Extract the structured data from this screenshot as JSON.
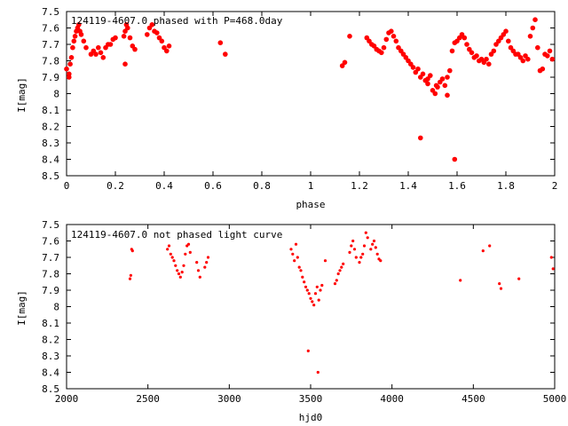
{
  "chart_data": [
    {
      "type": "scatter",
      "title": "124119-4607.0 phased with P=468.0day",
      "xlabel": "phase",
      "ylabel": "I[mag]",
      "xlim": [
        0,
        2
      ],
      "ylim": [
        7.5,
        8.5
      ],
      "y_inverted": true,
      "x_ticks": [
        "0",
        "0.2",
        "0.4",
        "0.6",
        "0.8",
        "1",
        "1.2",
        "1.4",
        "1.6",
        "1.8",
        "2"
      ],
      "y_ticks": [
        "7.5",
        "7.6",
        "7.7",
        "7.8",
        "7.9",
        "8",
        "8.1",
        "8.2",
        "8.3",
        "8.4",
        "8.5"
      ],
      "marker_color": "#ff0000",
      "marker_size": "large",
      "series": [
        {
          "x": [
            0.0,
            0.01,
            0.015,
            0.02,
            0.025,
            0.03,
            0.035,
            0.04,
            0.045,
            0.05,
            0.055,
            0.06,
            0.07,
            0.08,
            0.1,
            0.11,
            0.12,
            0.13,
            0.14,
            0.15,
            0.16,
            0.17,
            0.18,
            0.19,
            0.2,
            0.235,
            0.24,
            0.245,
            0.25,
            0.26,
            0.27,
            0.28,
            0.33,
            0.34,
            0.35,
            0.36,
            0.37,
            0.38,
            0.39,
            0.4,
            0.41,
            0.42,
            0.63,
            0.65,
            1.13,
            1.14,
            1.16,
            1.23,
            1.24,
            1.25,
            1.26,
            1.27,
            1.28,
            1.29,
            1.3,
            1.31,
            1.32,
            1.33,
            1.34,
            1.35,
            1.36,
            1.37,
            1.38,
            1.39,
            1.4,
            1.41,
            1.42,
            1.43,
            1.44,
            1.45,
            1.46,
            1.47,
            1.48,
            1.49,
            1.5,
            1.51,
            1.52,
            1.53,
            1.54,
            1.55,
            1.56,
            1.57,
            1.58,
            1.59,
            1.6,
            1.61,
            1.62,
            1.63,
            1.64,
            1.65,
            1.66,
            1.67,
            1.68,
            1.69,
            1.7,
            1.71,
            1.72,
            1.73,
            1.74,
            1.75,
            1.76,
            1.77,
            1.78,
            1.79,
            1.8,
            1.81,
            1.82,
            1.83,
            1.84,
            1.85,
            1.86,
            1.87,
            1.88,
            1.89,
            1.9,
            1.91,
            1.92,
            1.93,
            1.94,
            1.95,
            1.96,
            1.97,
            1.98,
            1.99,
            1.45,
            1.59,
            0.24,
            0.01,
            1.48,
            1.515,
            1.56
          ],
          "y": [
            7.85,
            7.88,
            7.82,
            7.78,
            7.72,
            7.68,
            7.65,
            7.62,
            7.6,
            7.58,
            7.62,
            7.64,
            7.68,
            7.72,
            7.76,
            7.74,
            7.76,
            7.72,
            7.75,
            7.78,
            7.72,
            7.7,
            7.7,
            7.67,
            7.66,
            7.65,
            7.62,
            7.58,
            7.6,
            7.66,
            7.71,
            7.73,
            7.64,
            7.6,
            7.58,
            7.62,
            7.63,
            7.66,
            7.68,
            7.72,
            7.74,
            7.71,
            7.69,
            7.76,
            7.83,
            7.81,
            7.65,
            7.66,
            7.68,
            7.7,
            7.71,
            7.73,
            7.74,
            7.75,
            7.72,
            7.67,
            7.63,
            7.62,
            7.65,
            7.68,
            7.72,
            7.74,
            7.76,
            7.78,
            7.8,
            7.82,
            7.84,
            7.87,
            7.85,
            7.9,
            7.88,
            7.92,
            7.94,
            7.89,
            7.98,
            8.0,
            7.96,
            7.93,
            7.91,
            7.95,
            7.9,
            7.86,
            7.74,
            7.69,
            7.68,
            7.66,
            7.64,
            7.66,
            7.7,
            7.73,
            7.75,
            7.78,
            7.77,
            7.8,
            7.79,
            7.81,
            7.79,
            7.82,
            7.76,
            7.74,
            7.7,
            7.68,
            7.66,
            7.64,
            7.62,
            7.68,
            7.72,
            7.74,
            7.76,
            7.76,
            7.78,
            7.8,
            7.77,
            7.79,
            7.65,
            7.6,
            7.55,
            7.72,
            7.86,
            7.85,
            7.76,
            7.77,
            7.74,
            7.79,
            8.27,
            8.4,
            7.82,
            7.9,
            7.91,
            7.95,
            8.01
          ]
        }
      ]
    },
    {
      "type": "scatter",
      "title": "124119-4607.0 not phased light curve",
      "xlabel": "hjd0",
      "ylabel": "I[mag]",
      "xlim": [
        2000,
        5000
      ],
      "ylim": [
        7.5,
        8.5
      ],
      "y_inverted": true,
      "x_ticks": [
        "2000",
        "2500",
        "3000",
        "3500",
        "4000",
        "4500",
        "5000"
      ],
      "y_ticks": [
        "7.5",
        "7.6",
        "7.7",
        "7.8",
        "7.9",
        "8",
        "8.1",
        "8.2",
        "8.3",
        "8.4",
        "8.5"
      ],
      "marker_color": "#ff0000",
      "marker_size": "small",
      "series": [
        {
          "x": [
            2390,
            2395,
            2400,
            2405,
            2620,
            2630,
            2640,
            2650,
            2660,
            2670,
            2680,
            2690,
            2700,
            2710,
            2720,
            2730,
            2740,
            2750,
            2760,
            2800,
            2810,
            2820,
            2850,
            2860,
            2870,
            3380,
            3390,
            3400,
            3410,
            3420,
            3430,
            3440,
            3450,
            3460,
            3470,
            3480,
            3490,
            3500,
            3510,
            3520,
            3530,
            3540,
            3550,
            3560,
            3570,
            3590,
            3650,
            3660,
            3670,
            3680,
            3690,
            3700,
            3740,
            3750,
            3760,
            3770,
            3780,
            3800,
            3810,
            3820,
            3830,
            3840,
            3850,
            3870,
            3880,
            3890,
            3900,
            3910,
            3920,
            3930,
            4420,
            4560,
            4600,
            4660,
            4670,
            4780,
            4980,
            4990,
            3485,
            3545
          ],
          "y": [
            7.83,
            7.81,
            7.65,
            7.66,
            7.65,
            7.63,
            7.68,
            7.7,
            7.72,
            7.75,
            7.78,
            7.8,
            7.82,
            7.79,
            7.75,
            7.68,
            7.63,
            7.62,
            7.67,
            7.73,
            7.78,
            7.82,
            7.76,
            7.73,
            7.7,
            7.65,
            7.68,
            7.72,
            7.62,
            7.7,
            7.76,
            7.78,
            7.82,
            7.85,
            7.88,
            7.9,
            7.92,
            7.95,
            7.97,
            7.99,
            7.92,
            7.88,
            7.96,
            7.9,
            7.87,
            7.72,
            7.86,
            7.84,
            7.8,
            7.78,
            7.76,
            7.74,
            7.67,
            7.63,
            7.6,
            7.65,
            7.7,
            7.73,
            7.7,
            7.68,
            7.63,
            7.55,
            7.58,
            7.65,
            7.62,
            7.6,
            7.64,
            7.68,
            7.71,
            7.72,
            7.84,
            7.66,
            7.63,
            7.86,
            7.89,
            7.83,
            7.7,
            7.77,
            8.27,
            8.4
          ]
        }
      ]
    }
  ]
}
